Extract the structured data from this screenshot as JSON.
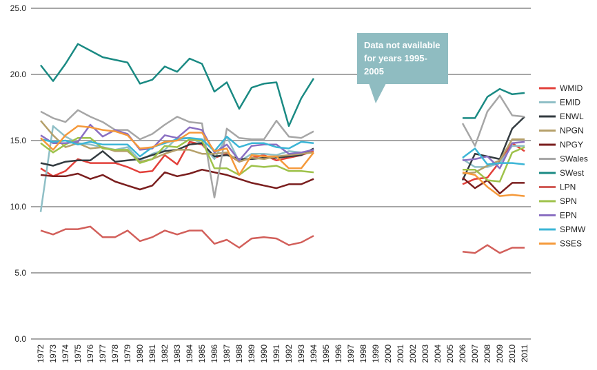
{
  "chart_data": {
    "type": "line",
    "annotation": "Data not available for years 1995-2005",
    "categories": [
      "1972",
      "1973",
      "1974",
      "1975",
      "1976",
      "1977",
      "1978",
      "1979",
      "1980",
      "1981",
      "1982",
      "1983",
      "1984",
      "1985",
      "1986",
      "1987",
      "1988",
      "1989",
      "1990",
      "1991",
      "1992",
      "1993",
      "1994",
      "1995",
      "1996",
      "1997",
      "1998",
      "1999",
      "2000",
      "2001",
      "2002",
      "2003",
      "2004",
      "2005",
      "2006",
      "2007",
      "2008",
      "2009",
      "2010",
      "2011"
    ],
    "ylim": [
      0,
      25
    ],
    "yticks": [
      {
        "value": 0,
        "label": "0.0"
      },
      {
        "value": 5,
        "label": "5.0"
      },
      {
        "value": 10,
        "label": "10.0"
      },
      {
        "value": 15,
        "label": "15.0"
      },
      {
        "value": 20,
        "label": "20.0"
      },
      {
        "value": 25,
        "label": "25.0"
      }
    ],
    "grid": true,
    "legend": "right",
    "series": [
      {
        "name": "WMID",
        "color": "#e2403a",
        "values": [
          12.9,
          12.3,
          12.7,
          13.6,
          13.3,
          13.3,
          13.3,
          13.0,
          12.6,
          12.7,
          13.9,
          13.2,
          14.9,
          14.7,
          13.7,
          14.0,
          13.4,
          13.7,
          13.9,
          13.5,
          13.7,
          13.9,
          14.2,
          null,
          null,
          null,
          null,
          null,
          null,
          null,
          null,
          null,
          null,
          null,
          11.7,
          12.1,
          12.2,
          13.4,
          14.8,
          14.2
        ]
      },
      {
        "name": "EMID",
        "color": "#8fbfc6",
        "values": [
          9.6,
          16.1,
          15.3,
          14.8,
          14.7,
          14.5,
          14.3,
          14.5,
          13.5,
          14.0,
          14.3,
          15.2,
          15.2,
          14.8,
          13.6,
          15.3,
          13.4,
          14.0,
          14.0,
          13.9,
          14.2,
          14.1,
          14.3,
          null,
          null,
          null,
          null,
          null,
          null,
          null,
          null,
          null,
          null,
          null,
          13.6,
          13.0,
          13.0,
          13.3,
          14.6,
          14.6
        ]
      },
      {
        "name": "ENWL",
        "color": "#333b40",
        "values": [
          13.3,
          13.1,
          13.4,
          13.5,
          13.5,
          14.2,
          13.4,
          13.5,
          13.6,
          13.9,
          14.2,
          14.3,
          14.7,
          14.8,
          13.8,
          13.9,
          13.6,
          13.6,
          13.7,
          13.7,
          13.8,
          13.9,
          14.4,
          null,
          null,
          null,
          null,
          null,
          null,
          null,
          null,
          null,
          null,
          null,
          12.0,
          14.0,
          13.8,
          13.6,
          15.9,
          16.8
        ]
      },
      {
        "name": "NPGN",
        "color": "#b5a06a",
        "values": [
          16.5,
          15.4,
          14.5,
          14.8,
          14.4,
          14.5,
          14.2,
          14.2,
          13.4,
          13.6,
          14.0,
          14.3,
          14.3,
          14.0,
          14.0,
          14.1,
          13.4,
          13.7,
          13.6,
          13.8,
          13.9,
          14.0,
          14.1,
          null,
          null,
          null,
          null,
          null,
          null,
          null,
          null,
          null,
          null,
          null,
          12.5,
          12.6,
          13.1,
          13.5,
          15.1,
          15.1
        ]
      },
      {
        "name": "NPGY",
        "color": "#7a1e1e",
        "values": [
          12.4,
          12.3,
          12.3,
          12.5,
          12.1,
          12.4,
          11.9,
          11.6,
          11.3,
          11.6,
          12.6,
          12.3,
          12.5,
          12.8,
          12.6,
          12.4,
          12.1,
          11.8,
          11.6,
          11.4,
          11.7,
          11.7,
          12.1,
          null,
          null,
          null,
          null,
          null,
          null,
          null,
          null,
          null,
          null,
          null,
          12.2,
          11.4,
          12.0,
          11.0,
          11.8,
          11.8
        ]
      },
      {
        "name": "SWales",
        "color": "#a6a6a6",
        "values": [
          17.2,
          16.7,
          16.4,
          17.3,
          16.8,
          16.4,
          15.8,
          15.8,
          15.1,
          15.5,
          16.2,
          16.8,
          16.4,
          16.3,
          10.7,
          15.9,
          15.2,
          15.1,
          15.1,
          16.5,
          15.3,
          15.2,
          15.7,
          null,
          null,
          null,
          null,
          null,
          null,
          null,
          null,
          null,
          null,
          null,
          16.3,
          14.6,
          17.2,
          18.4,
          16.9,
          16.8
        ]
      },
      {
        "name": "SWest",
        "color": "#1a8a83",
        "values": [
          20.7,
          19.5,
          20.8,
          22.3,
          21.8,
          21.3,
          21.1,
          20.9,
          19.3,
          19.6,
          20.6,
          20.2,
          21.2,
          20.8,
          18.7,
          19.4,
          17.4,
          19.0,
          19.3,
          19.4,
          16.1,
          18.2,
          19.7,
          null,
          null,
          null,
          null,
          null,
          null,
          null,
          null,
          null,
          null,
          null,
          16.7,
          16.7,
          18.3,
          18.9,
          18.5,
          18.6
        ]
      },
      {
        "name": "LPN",
        "color": "#d25f5a",
        "values": [
          8.2,
          7.9,
          8.3,
          8.3,
          8.5,
          7.7,
          7.7,
          8.2,
          7.4,
          7.7,
          8.2,
          7.9,
          8.2,
          8.2,
          7.2,
          7.5,
          6.9,
          7.6,
          7.7,
          7.6,
          7.1,
          7.3,
          7.8,
          null,
          null,
          null,
          null,
          null,
          null,
          null,
          null,
          null,
          null,
          null,
          6.6,
          6.5,
          7.1,
          6.5,
          6.9,
          6.9
        ]
      },
      {
        "name": "SPN",
        "color": "#9ec24a",
        "values": [
          14.8,
          14.1,
          14.7,
          15.2,
          15.2,
          14.4,
          14.3,
          14.3,
          13.3,
          13.6,
          14.6,
          14.5,
          15.1,
          15.0,
          12.9,
          12.9,
          12.4,
          13.1,
          13.0,
          13.1,
          12.7,
          12.7,
          12.6,
          null,
          null,
          null,
          null,
          null,
          null,
          null,
          null,
          null,
          null,
          null,
          12.8,
          12.8,
          12.0,
          11.9,
          14.1,
          14.5
        ]
      },
      {
        "name": "EPN",
        "color": "#8a6fc2",
        "values": [
          15.4,
          14.8,
          14.8,
          14.9,
          16.2,
          15.3,
          15.8,
          15.5,
          14.3,
          14.4,
          15.4,
          15.2,
          16.0,
          15.8,
          14.1,
          14.7,
          13.5,
          14.6,
          14.7,
          14.7,
          14.0,
          14.1,
          14.3,
          null,
          null,
          null,
          null,
          null,
          null,
          null,
          null,
          null,
          null,
          null,
          13.5,
          13.6,
          13.8,
          12.9,
          14.8,
          14.9
        ]
      },
      {
        "name": "SPMW",
        "color": "#3bb5d6",
        "values": [
          15.1,
          14.9,
          15.0,
          14.7,
          14.9,
          14.7,
          14.7,
          14.7,
          13.8,
          14.5,
          14.8,
          15.1,
          15.2,
          15.1,
          14.2,
          15.3,
          14.5,
          14.8,
          14.8,
          14.5,
          14.4,
          14.9,
          14.8,
          null,
          null,
          null,
          null,
          null,
          null,
          null,
          null,
          null,
          null,
          null,
          13.7,
          14.4,
          13.2,
          13.3,
          13.3,
          13.2
        ]
      },
      {
        "name": "SSES",
        "color": "#f5993a",
        "values": [
          15.2,
          14.3,
          15.4,
          16.1,
          16.0,
          15.8,
          15.7,
          15.4,
          14.4,
          14.5,
          14.9,
          15.0,
          15.6,
          15.6,
          14.2,
          14.4,
          12.4,
          13.9,
          13.8,
          13.8,
          12.9,
          12.9,
          14.1,
          null,
          null,
          null,
          null,
          null,
          null,
          null,
          null,
          null,
          null,
          null,
          12.6,
          12.4,
          11.5,
          10.8,
          10.9,
          10.8
        ]
      }
    ]
  }
}
